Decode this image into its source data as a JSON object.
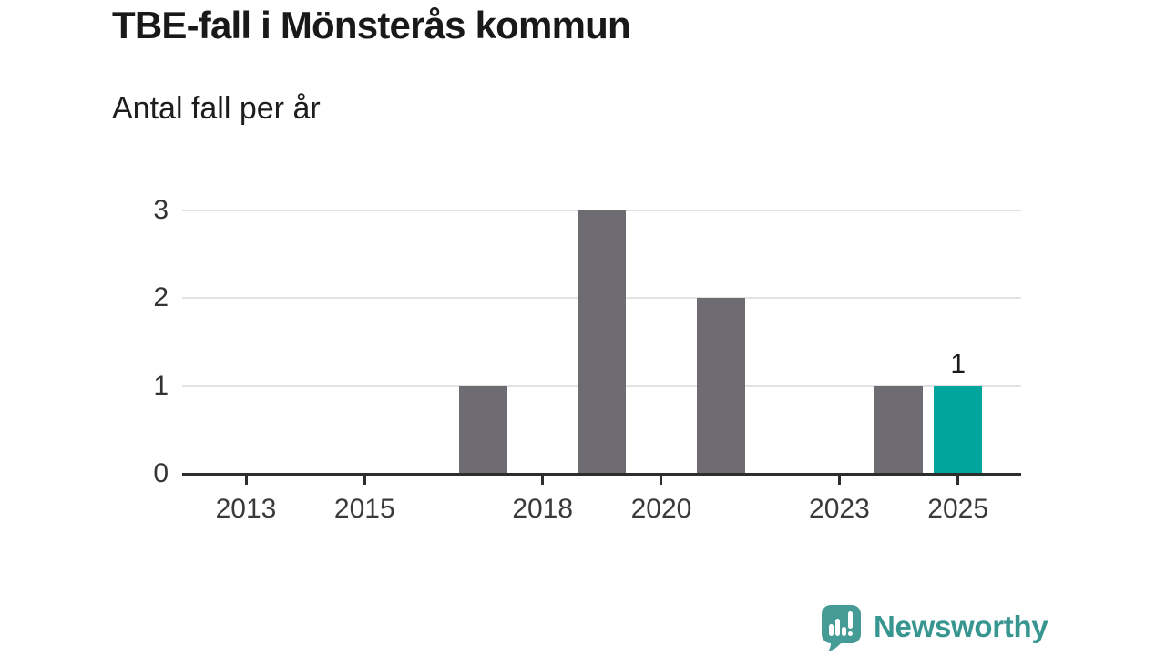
{
  "chart_data": {
    "type": "bar",
    "title": "TBE-fall i Mönsterås kommun",
    "subtitle": "Antal fall per år",
    "x": [
      2012,
      2013,
      2014,
      2015,
      2016,
      2017,
      2018,
      2019,
      2020,
      2021,
      2022,
      2023,
      2024,
      2025
    ],
    "values": [
      0,
      0,
      0,
      0,
      0,
      1,
      0,
      3,
      0,
      2,
      0,
      0,
      1,
      1
    ],
    "highlight_x": 2025,
    "x_tick_labels": [
      "2013",
      "2015",
      "2018",
      "2020",
      "2023",
      "2025"
    ],
    "y_ticks": [
      0,
      1,
      2,
      3
    ],
    "ylim": [
      0,
      3.2
    ],
    "grid": "horizontal",
    "legend": "none",
    "data_labels": [
      {
        "x": 2025,
        "text": "1"
      }
    ],
    "colors": {
      "bar": "#6e6c72",
      "highlight": "#00a69c",
      "grid": "#e2e2e2",
      "axis": "#2d2d2d"
    }
  },
  "footer": {
    "brand": "Newsworthy",
    "brand_color": "#37968f",
    "icon_color": "#459b95"
  }
}
